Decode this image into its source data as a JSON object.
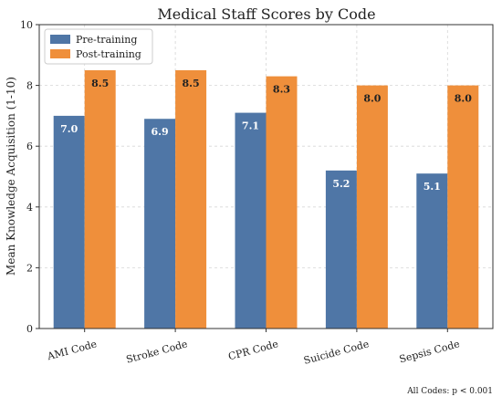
{
  "chart_data": {
    "type": "bar",
    "title": "Medical Staff Scores by Code",
    "xlabel": "",
    "ylabel": "Mean Knowledge Acquisition (1-10)",
    "categories": [
      "AMI Code",
      "Stroke Code",
      "CPR Code",
      "Suicide Code",
      "Sepsis Code"
    ],
    "series": [
      {
        "name": "Pre-training",
        "values": [
          7.0,
          6.9,
          7.1,
          5.2,
          5.1
        ],
        "labels": [
          "7.0",
          "6.9",
          "7.1",
          "5.2",
          "5.1"
        ],
        "color": "#4f76a6"
      },
      {
        "name": "Post-training",
        "values": [
          8.5,
          8.5,
          8.3,
          8.0,
          8.0
        ],
        "labels": [
          "8.5",
          "8.5",
          "8.3",
          "8.0",
          "8.0"
        ],
        "color": "#ef8f3b"
      }
    ],
    "ylim": [
      0,
      10
    ],
    "yticks": [
      0,
      2,
      4,
      6,
      8,
      10
    ],
    "grid": true,
    "legend_position": "top-left",
    "annotation": "All Codes: p < 0.001"
  }
}
